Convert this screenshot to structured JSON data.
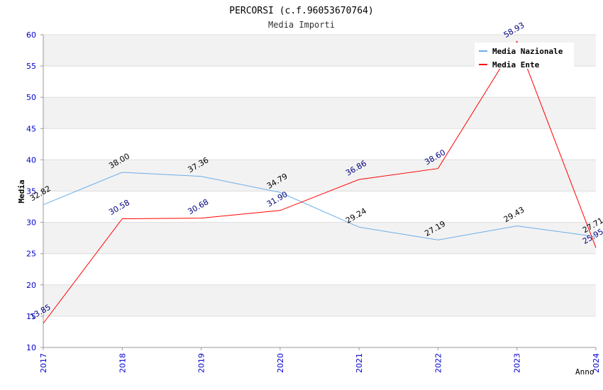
{
  "chart_data": {
    "type": "line",
    "title": "PERCORSI (c.f.96053670764)",
    "subtitle": "Media Importi",
    "xlabel": "Anno",
    "ylabel": "Media",
    "ylim": [
      10,
      60
    ],
    "ytick_step": 5,
    "grid": true,
    "legend_position": "top-right",
    "categories": [
      "2017",
      "2018",
      "2019",
      "2020",
      "2021",
      "2022",
      "2023",
      "2024"
    ],
    "series": [
      {
        "name": "Media Nazionale",
        "color": "#6aaee8",
        "label_color": "#000000",
        "values": [
          32.82,
          38.0,
          37.36,
          34.79,
          29.24,
          27.19,
          29.43,
          27.71
        ],
        "labels": [
          "32.82",
          "38.00",
          "37.36",
          "34.79",
          "29.24",
          "27.19",
          "29.43",
          "27.71"
        ]
      },
      {
        "name": "Media Ente",
        "color": "#ff0000",
        "label_color": "#00007f",
        "values": [
          13.85,
          30.58,
          30.68,
          31.9,
          36.86,
          38.6,
          58.93,
          25.95
        ],
        "labels": [
          "13.85",
          "30.58",
          "30.68",
          "31.90",
          "36.86",
          "38.60",
          "58.93",
          "25.95"
        ]
      }
    ],
    "colors": {
      "tick_label": "#0000cc",
      "band": "#f2f2f2",
      "grid": "#dddddd",
      "axis": "#999999"
    }
  }
}
